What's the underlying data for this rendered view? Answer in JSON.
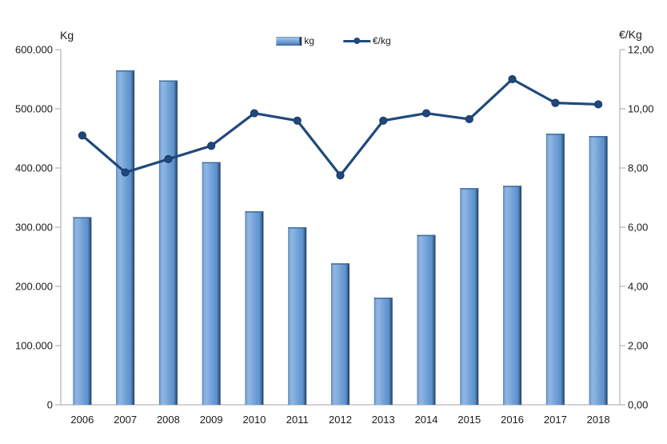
{
  "legend": {
    "kg_label": "kg",
    "eur_label": "€/kg"
  },
  "axes": {
    "left": {
      "title": "Kg",
      "ticks": [
        "0",
        "100.000",
        "200.000",
        "300.000",
        "400.000",
        "500.000",
        "600.000"
      ]
    },
    "right": {
      "title": "€/Kg",
      "ticks": [
        "0,00",
        "2,00",
        "4,00",
        "6,00",
        "8,00",
        "10,00",
        "12,00"
      ]
    }
  },
  "colors": {
    "bar_main": "#6f9fd8",
    "bar_light": "#8fb5e1",
    "bar_left_edge": "#4d7db8",
    "bar_dark_edge": "#1e3f66",
    "bar_top_cap": "#3d6899",
    "line": "#1f497d",
    "marker_stroke": "#17375e",
    "axis": "#a6a6a6",
    "text": "#1a1a1a"
  },
  "chart_data": {
    "type": "combo",
    "categories": [
      "2006",
      "2007",
      "2008",
      "2009",
      "2010",
      "2011",
      "2012",
      "2013",
      "2014",
      "2015",
      "2016",
      "2017",
      "2018"
    ],
    "series": [
      {
        "name": "kg",
        "type": "bar",
        "axis": "left",
        "values": [
          317000,
          565000,
          548000,
          410000,
          327000,
          300000,
          239000,
          181000,
          287000,
          366000,
          370000,
          458000,
          454000
        ]
      },
      {
        "name": "€/kg",
        "type": "line",
        "axis": "right",
        "values": [
          9.1,
          7.85,
          8.3,
          8.75,
          9.85,
          9.6,
          7.75,
          9.6,
          9.85,
          9.65,
          11.0,
          10.2,
          10.15
        ]
      }
    ],
    "left_axis": {
      "label": "Kg",
      "range": [
        0,
        600000
      ],
      "tick_step": 100000,
      "tick_format": "thousands-dot"
    },
    "right_axis": {
      "label": "€/Kg",
      "range": [
        0,
        12
      ],
      "tick_step": 2,
      "tick_format": "comma-2dp"
    },
    "xlabel": "",
    "title": "",
    "legend_position": "top-center",
    "grid": false
  }
}
